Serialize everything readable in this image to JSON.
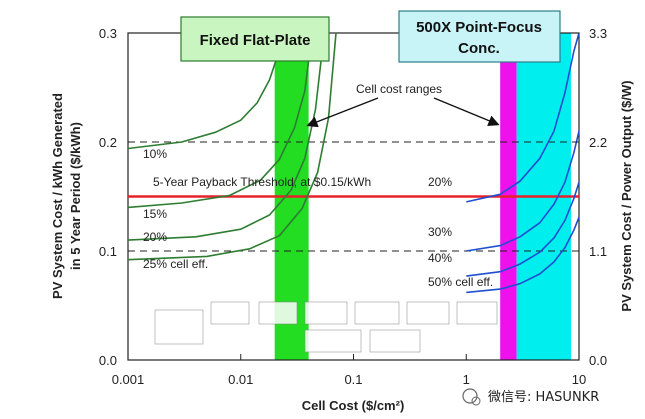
{
  "chart_data": {
    "type": "line",
    "xlabel": "Cell Cost ($/cm²)",
    "ylabel_left_line1": "PV System Cost / kWh Generated",
    "ylabel_left_line2": "in 5 Year Period  ($/kWh)",
    "ylabel_right": "PV System Cost / Power Output  ($/W)",
    "x_scale": "log",
    "xlim": [
      0.001,
      10
    ],
    "ylim": [
      0,
      0.3
    ],
    "x_ticks": [
      {
        "value": 0.001,
        "label": "0.001"
      },
      {
        "value": 0.01,
        "label": "0.01"
      },
      {
        "value": 0.1,
        "label": "0.1"
      },
      {
        "value": 1,
        "label": "1"
      },
      {
        "value": 10,
        "label": "10"
      }
    ],
    "y_ticks_left": [
      {
        "value": 0,
        "label": "0.0"
      },
      {
        "value": 0.1,
        "label": "0.1"
      },
      {
        "value": 0.2,
        "label": "0.2"
      },
      {
        "value": 0.3,
        "label": "0.3"
      }
    ],
    "y_ticks_right": [
      {
        "value": 0,
        "label": "0.0"
      },
      {
        "value": 0.1,
        "label": "1.1"
      },
      {
        "value": 0.2,
        "label": "2.2"
      },
      {
        "value": 0.3,
        "label": "3.3"
      }
    ],
    "dashed_lines": [
      0.1,
      0.2
    ],
    "threshold": {
      "value": 0.15,
      "label": "5-Year Payback Threshold, at $0.15/kWh",
      "color": "#e8202a"
    },
    "regions": [
      {
        "name": "Fixed Flat-Plate",
        "x_from": 0.02,
        "x_to": 0.04,
        "color": "#22dd22",
        "box_label": "Fixed Flat-Plate"
      },
      {
        "name": "500X Point-Focus Conc.",
        "x_from": 2.0,
        "x_to": 2.8,
        "color": "#ee11ee",
        "box_label_line1": "500X Point-Focus",
        "box_label_line2": "Conc."
      },
      {
        "name": "concentrator-cyan",
        "x_from": 2.8,
        "x_to": 8.5,
        "color": "#00eeee"
      }
    ],
    "annotation": "Cell cost ranges",
    "flat_plate_series": [
      {
        "label": "10%",
        "color": "#2e7d32",
        "points": [
          [
            0.001,
            0.194
          ],
          [
            0.003,
            0.2
          ],
          [
            0.006,
            0.209
          ],
          [
            0.01,
            0.22
          ],
          [
            0.014,
            0.236
          ],
          [
            0.018,
            0.257
          ],
          [
            0.021,
            0.278
          ],
          [
            0.024,
            0.3
          ]
        ]
      },
      {
        "label": "15%",
        "color": "#2e7d32",
        "points": [
          [
            0.001,
            0.14
          ],
          [
            0.003,
            0.144
          ],
          [
            0.008,
            0.151
          ],
          [
            0.015,
            0.165
          ],
          [
            0.022,
            0.184
          ],
          [
            0.03,
            0.213
          ],
          [
            0.037,
            0.247
          ],
          [
            0.043,
            0.3
          ]
        ]
      },
      {
        "label": "20%",
        "color": "#2e7d32",
        "points": [
          [
            0.001,
            0.11
          ],
          [
            0.004,
            0.113
          ],
          [
            0.01,
            0.12
          ],
          [
            0.018,
            0.133
          ],
          [
            0.028,
            0.156
          ],
          [
            0.037,
            0.185
          ],
          [
            0.046,
            0.23
          ],
          [
            0.055,
            0.3
          ]
        ]
      },
      {
        "label": "25% cell eff.",
        "color": "#2e7d32",
        "points": [
          [
            0.001,
            0.092
          ],
          [
            0.005,
            0.095
          ],
          [
            0.012,
            0.102
          ],
          [
            0.022,
            0.114
          ],
          [
            0.035,
            0.139
          ],
          [
            0.048,
            0.172
          ],
          [
            0.06,
            0.222
          ],
          [
            0.07,
            0.3
          ]
        ]
      }
    ],
    "concentrator_series": [
      {
        "label": "20%",
        "color": "#1f4fd1",
        "points": [
          [
            1.0,
            0.145
          ],
          [
            2.0,
            0.152
          ],
          [
            3.0,
            0.164
          ],
          [
            4.5,
            0.185
          ],
          [
            6.0,
            0.21
          ],
          [
            7.5,
            0.245
          ],
          [
            9.0,
            0.283
          ],
          [
            10,
            0.3
          ]
        ]
      },
      {
        "label": "30%",
        "color": "#1f4fd1",
        "points": [
          [
            1.0,
            0.1
          ],
          [
            2.0,
            0.105
          ],
          [
            3.0,
            0.113
          ],
          [
            4.5,
            0.126
          ],
          [
            6.0,
            0.143
          ],
          [
            7.5,
            0.163
          ],
          [
            9.0,
            0.19
          ],
          [
            10,
            0.21
          ]
        ]
      },
      {
        "label": "40%",
        "color": "#1f4fd1",
        "points": [
          [
            1.0,
            0.077
          ],
          [
            2.0,
            0.081
          ],
          [
            3.0,
            0.088
          ],
          [
            4.5,
            0.099
          ],
          [
            6.0,
            0.112
          ],
          [
            7.5,
            0.128
          ],
          [
            9.0,
            0.148
          ],
          [
            10,
            0.163
          ]
        ]
      },
      {
        "label": "50% cell eff.",
        "color": "#1f4fd1",
        "points": [
          [
            1.0,
            0.062
          ],
          [
            2.0,
            0.065
          ],
          [
            3.0,
            0.07
          ],
          [
            4.5,
            0.079
          ],
          [
            6.0,
            0.09
          ],
          [
            7.5,
            0.103
          ],
          [
            9.0,
            0.119
          ],
          [
            10,
            0.131
          ]
        ]
      }
    ]
  },
  "watermark": "微信号: HASUNKR"
}
